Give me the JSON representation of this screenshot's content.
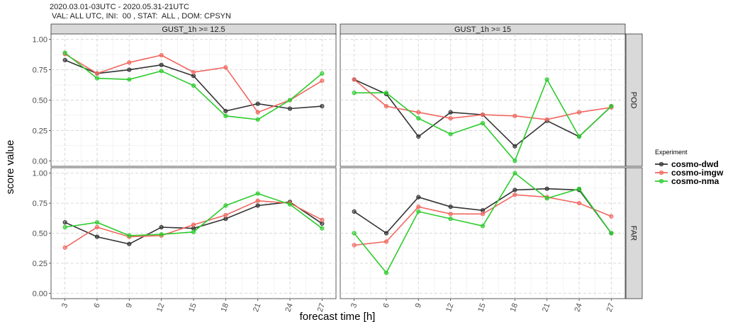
{
  "chart_data": {
    "type": "line",
    "title_line1": "2020.03.01-03UTC - 2020.05.31-21UTC",
    "title_line2": " VAL: ALL UTC, INI:  00 , STAT:  ALL , DOM: CPSYN",
    "xlabel": "forecast time [h]",
    "ylabel": "score value",
    "x": [
      3,
      6,
      9,
      12,
      15,
      18,
      21,
      24,
      27
    ],
    "x_tick_labels": [
      "3",
      "6",
      "9",
      "12",
      "15",
      "18",
      "21",
      "24",
      "27"
    ],
    "ylim": [
      0,
      1
    ],
    "y_ticks": [
      0,
      0.25,
      0.5,
      0.75,
      1
    ],
    "y_tick_labels": [
      "0.00",
      "0.25",
      "0.50",
      "0.75",
      "1.00"
    ],
    "columns": [
      "GUST_1h >= 12.5",
      "GUST_1h >= 15"
    ],
    "rows": [
      "POD",
      "FAR"
    ],
    "legend": {
      "title": "Experiment",
      "entries": [
        {
          "name": "cosmo-dwd",
          "color": "#333333"
        },
        {
          "name": "cosmo-imgw",
          "color": "#f0675f"
        },
        {
          "name": "cosmo-nma",
          "color": "#2ecc2e"
        }
      ]
    },
    "panels": [
      {
        "column": "GUST_1h >= 12.5",
        "row": "POD",
        "series": [
          {
            "name": "cosmo-dwd",
            "values": [
              0.83,
              0.72,
              0.75,
              0.79,
              0.7,
              0.41,
              0.47,
              0.43,
              0.45
            ]
          },
          {
            "name": "cosmo-imgw",
            "values": [
              0.88,
              0.72,
              0.81,
              0.87,
              0.73,
              0.77,
              0.4,
              0.5,
              0.66
            ]
          },
          {
            "name": "cosmo-nma",
            "values": [
              0.89,
              0.68,
              0.67,
              0.74,
              0.62,
              0.37,
              0.34,
              0.5,
              0.72
            ]
          }
        ]
      },
      {
        "column": "GUST_1h >= 15",
        "row": "POD",
        "series": [
          {
            "name": "cosmo-dwd",
            "values": [
              0.67,
              0.55,
              0.2,
              0.4,
              0.38,
              0.12,
              0.33,
              0.2,
              0.45
            ]
          },
          {
            "name": "cosmo-imgw",
            "values": [
              0.67,
              0.45,
              0.4,
              0.35,
              0.38,
              0.37,
              0.34,
              0.4,
              0.44
            ]
          },
          {
            "name": "cosmo-nma",
            "values": [
              0.56,
              0.56,
              0.35,
              0.22,
              0.31,
              0.0,
              0.67,
              0.2,
              0.45
            ]
          }
        ]
      },
      {
        "column": "GUST_1h >= 12.5",
        "row": "FAR",
        "series": [
          {
            "name": "cosmo-dwd",
            "values": [
              0.59,
              0.47,
              0.41,
              0.55,
              0.54,
              0.62,
              0.73,
              0.76,
              0.58
            ]
          },
          {
            "name": "cosmo-imgw",
            "values": [
              0.38,
              0.55,
              0.47,
              0.48,
              0.57,
              0.65,
              0.77,
              0.75,
              0.61
            ]
          },
          {
            "name": "cosmo-nma",
            "values": [
              0.55,
              0.59,
              0.48,
              0.49,
              0.51,
              0.73,
              0.83,
              0.74,
              0.54
            ]
          }
        ]
      },
      {
        "column": "GUST_1h >= 15",
        "row": "FAR",
        "series": [
          {
            "name": "cosmo-dwd",
            "values": [
              0.68,
              0.5,
              0.8,
              0.72,
              0.69,
              0.86,
              0.87,
              0.86,
              0.5
            ]
          },
          {
            "name": "cosmo-imgw",
            "values": [
              0.4,
              0.43,
              0.72,
              0.66,
              0.66,
              0.82,
              0.8,
              0.75,
              0.64
            ]
          },
          {
            "name": "cosmo-nma",
            "values": [
              0.5,
              0.17,
              0.68,
              0.62,
              0.56,
              1.0,
              0.79,
              0.87,
              0.5
            ]
          }
        ]
      }
    ]
  }
}
